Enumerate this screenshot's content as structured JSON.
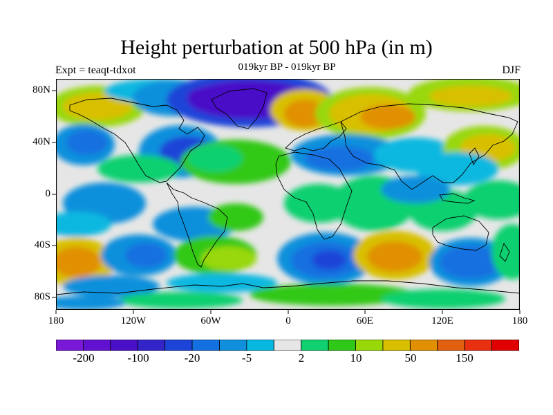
{
  "title": "Height perturbation at 500 hPa (in m)",
  "subtitle": "019kyr BP - 019kyr BP",
  "left_label": "Expt = teaqt-tdxot",
  "right_label": "DJF",
  "lat_labels": [
    "80N",
    "40N",
    "0",
    "40S",
    "80S"
  ],
  "lon_labels": [
    "180",
    "120W",
    "60W",
    "0",
    "60E",
    "120E",
    "180"
  ],
  "colorbar": {
    "labels": [
      "-200",
      "-100",
      "-20",
      "-5",
      "2",
      "10",
      "50",
      "150"
    ],
    "colors": [
      "#7a18d8",
      "#6012d0",
      "#4a10c8",
      "#3224c8",
      "#1c44d8",
      "#1470e0",
      "#1090dc",
      "#08b8e0",
      "#e6e6e6",
      "#10d070",
      "#30c818",
      "#98d808",
      "#d8c000",
      "#e09000",
      "#e06010",
      "#e83010",
      "#e00000"
    ]
  },
  "palette": {
    "deep_neg": "#4a10c8",
    "strong_neg": "#1c44d8",
    "mid_neg": "#1470e0",
    "weak_neg": "#1090dc",
    "faint_neg": "#08b8e0",
    "neutral": "#e6e6e6",
    "weak_pos": "#10d070",
    "mid_pos": "#30c818",
    "yellowgreen": "#98d808",
    "gold": "#d8c000",
    "orange": "#e09000"
  }
}
